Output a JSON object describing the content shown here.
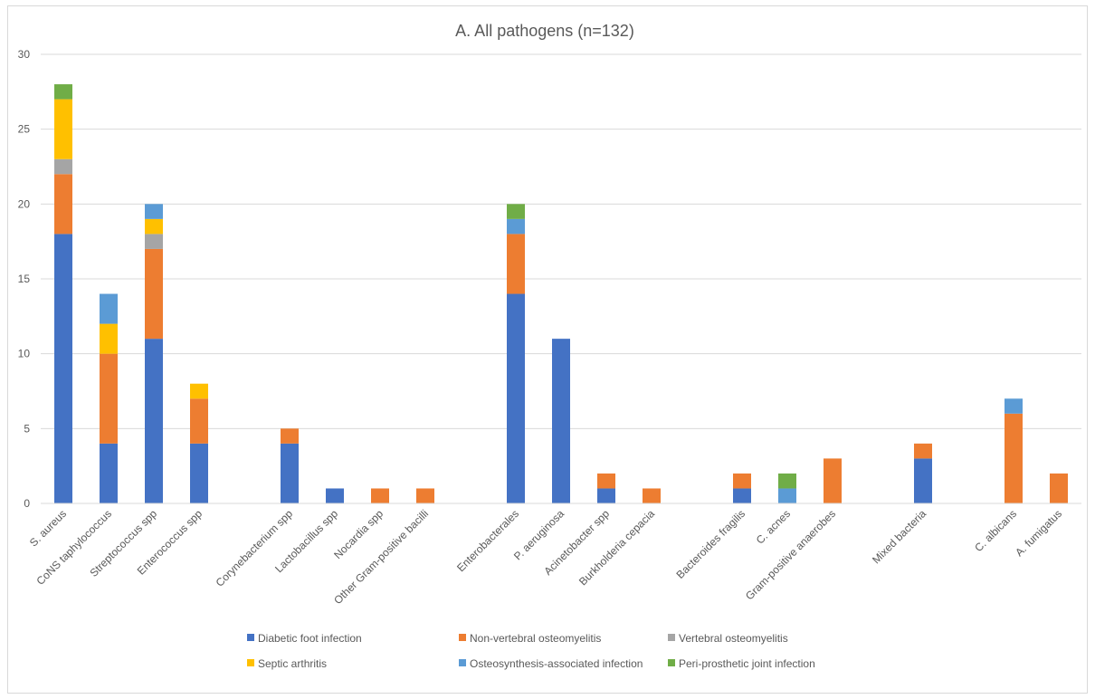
{
  "chart_data": {
    "type": "bar",
    "stacked": true,
    "title": "A. All pathogens (n=132)",
    "xlabel": "",
    "ylabel": "",
    "ylim": [
      0,
      30
    ],
    "yticks": [
      0,
      5,
      10,
      15,
      20,
      25,
      30
    ],
    "grid": true,
    "legend_position": "bottom",
    "categories": [
      "S. aureus",
      "CoNS taphylococcus",
      "Streptococcus spp",
      "Enterococcus spp",
      "",
      "Corynebacterium spp",
      "Lactobacillus spp",
      "Nocardia spp",
      "Other Gram-positive bacilli",
      "",
      "Enterobacterales",
      "P. aeruginosa",
      "Acinetobacter spp",
      "Burkholderia cepacia",
      "",
      "Bacteroides fragilis",
      "C. acnes",
      "Gram-positive anaerobes",
      "",
      "Mixed bacteria",
      "",
      "C. albicans",
      "A. fumigatus"
    ],
    "series": [
      {
        "name": "Diabetic foot infection",
        "color": "#4472c4",
        "values": [
          18,
          4,
          11,
          4,
          0,
          4,
          1,
          0,
          0,
          0,
          14,
          11,
          1,
          0,
          0,
          1,
          0,
          0,
          0,
          3,
          0,
          0,
          0
        ]
      },
      {
        "name": "Non-vertebral osteomyelitis",
        "color": "#ed7d31",
        "values": [
          4,
          6,
          6,
          3,
          0,
          1,
          0,
          1,
          1,
          0,
          4,
          0,
          1,
          1,
          0,
          1,
          0,
          3,
          0,
          1,
          0,
          6,
          2
        ]
      },
      {
        "name": "Vertebral osteomyelitis",
        "color": "#a5a5a5",
        "values": [
          1,
          0,
          1,
          0,
          0,
          0,
          0,
          0,
          0,
          0,
          0,
          0,
          0,
          0,
          0,
          0,
          0,
          0,
          0,
          0,
          0,
          0,
          0
        ]
      },
      {
        "name": "Septic arthritis",
        "color": "#ffc000",
        "values": [
          4,
          2,
          1,
          1,
          0,
          0,
          0,
          0,
          0,
          0,
          0,
          0,
          0,
          0,
          0,
          0,
          0,
          0,
          0,
          0,
          0,
          0,
          0
        ]
      },
      {
        "name": "Osteosynthesis-associated infection",
        "color": "#5b9bd5",
        "values": [
          0,
          2,
          1,
          0,
          0,
          0,
          0,
          0,
          0,
          0,
          1,
          0,
          0,
          0,
          0,
          0,
          1,
          0,
          0,
          0,
          0,
          1,
          0
        ]
      },
      {
        "name": "Peri-prosthetic joint infection",
        "color": "#70ad47",
        "values": [
          1,
          0,
          0,
          0,
          0,
          0,
          0,
          0,
          0,
          0,
          1,
          0,
          0,
          0,
          0,
          0,
          1,
          0,
          0,
          0,
          0,
          0,
          0
        ]
      }
    ]
  }
}
